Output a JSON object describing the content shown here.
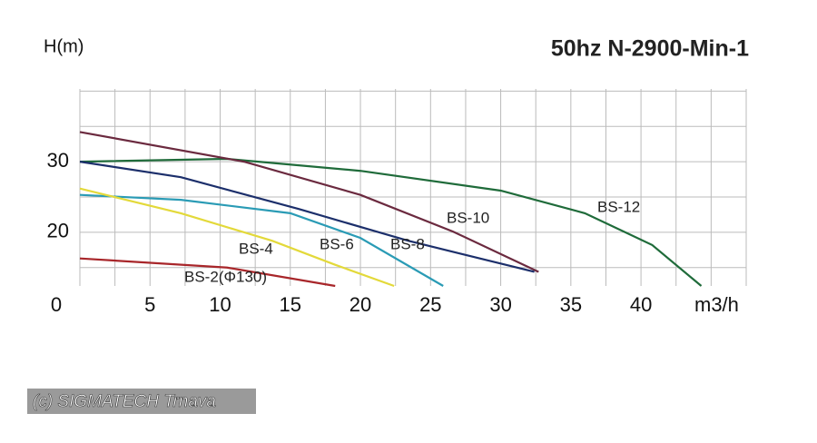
{
  "chart_data": {
    "type": "line",
    "title": "50hz N-2900-Min-1",
    "y_label": "H(m)",
    "x_label": "m3/h",
    "watermark": "(c) SIGMATECH Trnava",
    "xlim": [
      0,
      47.5
    ],
    "ylim": [
      12.4,
      40.3
    ],
    "xticks": [
      0,
      5,
      10,
      15,
      20,
      25,
      30,
      35,
      40
    ],
    "yticks": [
      20,
      30
    ],
    "xgrid": [
      0,
      2.5,
      5,
      7.5,
      10,
      12.5,
      15,
      17.5,
      20,
      22.5,
      25,
      27.5,
      30,
      32.5,
      35,
      37.5,
      40,
      42.5,
      45,
      47.5
    ],
    "ygrid": [
      15,
      20,
      25,
      30,
      35,
      40
    ],
    "series": [
      {
        "name": "BS-12",
        "color": "#1f6b3a",
        "x": [
          0,
          10.5,
          20,
          30,
          36,
          40.8,
          44.3
        ],
        "values": [
          30,
          30.4,
          28.7,
          25.9,
          22.7,
          18.2,
          12.4
        ]
      },
      {
        "name": "BS-10",
        "color": "#6b2a3f",
        "x": [
          0,
          11.7,
          20,
          26.6,
          32.7
        ],
        "values": [
          34.2,
          30,
          25.3,
          20.1,
          14.4
        ]
      },
      {
        "name": "BS-8",
        "color": "#1c2f6b",
        "x": [
          0,
          7.2,
          15.6,
          23.4,
          32.4
        ],
        "values": [
          30,
          27.8,
          23.3,
          18.8,
          14.4
        ]
      },
      {
        "name": "BS-6",
        "color": "#2a9bb5",
        "x": [
          0,
          7.2,
          15,
          20,
          25.9
        ],
        "values": [
          25.3,
          24.6,
          22.7,
          19.2,
          12.4
        ]
      },
      {
        "name": "BS-4",
        "color": "#e3d93a",
        "x": [
          0,
          7.2,
          13.7,
          18.2,
          22.4
        ],
        "values": [
          26.2,
          22.7,
          18.8,
          15.4,
          12.4
        ]
      },
      {
        "name": "BS-2(Φ130)",
        "color": "#a8262a",
        "x": [
          0,
          10.5,
          18.2
        ],
        "values": [
          16.3,
          15,
          12.4
        ]
      }
    ]
  }
}
